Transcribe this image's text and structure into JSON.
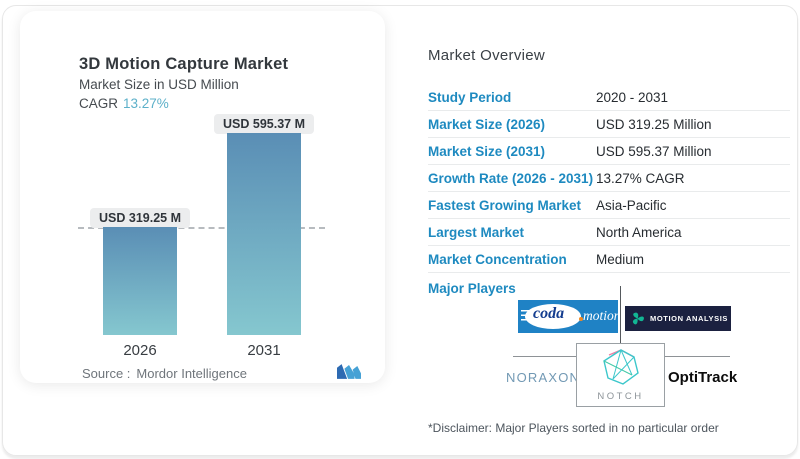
{
  "colors": {
    "accent_blue": "#1e8ac0",
    "cagr_teal": "#5cb0c9",
    "bar_gradient_top": "#5a8eb5",
    "bar_gradient_bottom": "#85c7cf",
    "codamotion_blue": "#1f82c5",
    "motion_analysis_navy": "#1b2140",
    "player_icon_teal": "#12b694"
  },
  "chart_card": {
    "title": "3D Motion Capture Market",
    "subtitle": "Market Size in USD Million",
    "cagr_label": "CAGR",
    "cagr_value": "13.27%",
    "source_label": "Source :",
    "source_value": "Mordor Intelligence",
    "logo_name": "mordor-intelligence-logo"
  },
  "chart_data": {
    "type": "bar",
    "title": "3D Motion Capture Market",
    "ylabel": "Market Size in USD Million",
    "categories": [
      "2026",
      "2031"
    ],
    "values": [
      319.25,
      595.37
    ],
    "unit": "USD Million",
    "data_labels": [
      "USD 319.25 M",
      "USD 595.37 M"
    ],
    "cagr_pct": 13.27,
    "reference_line_value": 319.25,
    "grid": false,
    "legend": false,
    "ylim": [
      0,
      650
    ]
  },
  "overview": {
    "heading": "Market Overview",
    "rows": [
      {
        "label": "Study Period",
        "value": "2020 - 2031"
      },
      {
        "label": "Market Size (2026)",
        "value": "USD 319.25 Million"
      },
      {
        "label": "Market Size (2031)",
        "value": "USD 595.37 Million"
      },
      {
        "label": "Growth Rate (2026 - 2031)",
        "value": "13.27% CAGR"
      },
      {
        "label": "Fastest Growing Market",
        "value": "Asia-Pacific"
      },
      {
        "label": "Largest Market",
        "value": "North America"
      },
      {
        "label": "Market Concentration",
        "value": "Medium"
      }
    ],
    "major_players_label": "Major Players",
    "players": {
      "codamotion": {
        "part1": "coda",
        "part2": "motion"
      },
      "motion_analysis": {
        "label": "MOTION ANALYSIS"
      },
      "noraxon": {
        "label": "NORAXON",
        "reg": "®"
      },
      "notch": {
        "label": "NOTCH"
      },
      "optitrack": {
        "label": "OptiTrack"
      }
    },
    "disclaimer": "*Disclaimer: Major Players sorted in no particular order"
  }
}
